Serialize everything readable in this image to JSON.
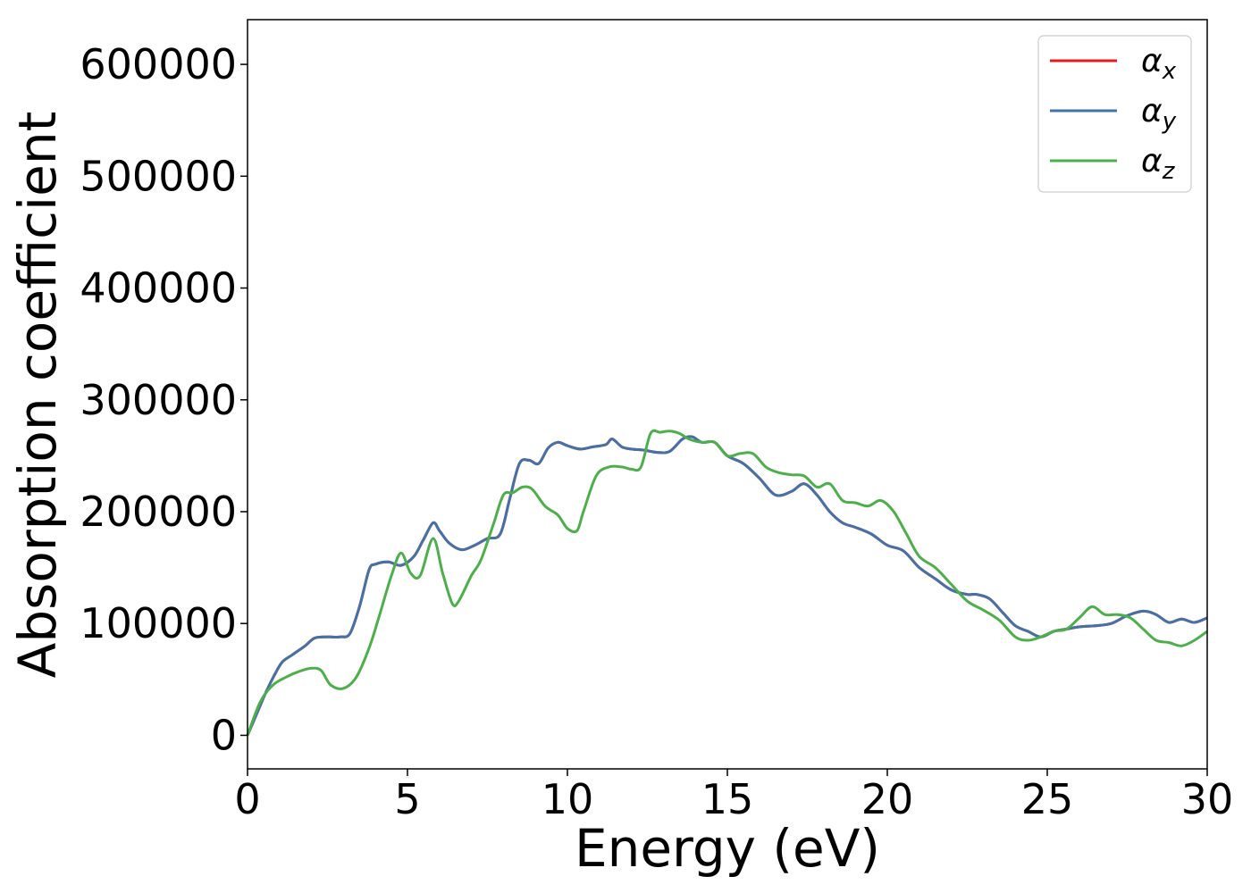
{
  "chart_data": {
    "type": "line",
    "xlabel": "Energy (eV)",
    "ylabel": "Absorption coefficient",
    "xlim": [
      0,
      30
    ],
    "ylim": [
      -30000,
      640000
    ],
    "xticks": [
      0,
      5,
      10,
      15,
      20,
      25,
      30
    ],
    "yticks": [
      0,
      100000,
      200000,
      300000,
      400000,
      500000,
      600000
    ],
    "grid": false,
    "legend_position": "top-right",
    "series": [
      {
        "name": "αx",
        "legend_base": "α",
        "legend_sub": "x",
        "color": "#e41a1c",
        "x": [
          0,
          0.3,
          0.6,
          0.9,
          1.1,
          1.4,
          1.8,
          2.1,
          2.5,
          2.9,
          3.2,
          3.5,
          3.8,
          4.0,
          4.4,
          4.8,
          5.2,
          5.5,
          5.8,
          6.0,
          6.3,
          6.7,
          7.1,
          7.5,
          7.9,
          8.2,
          8.5,
          8.8,
          9.1,
          9.4,
          9.7,
          10.0,
          10.4,
          10.8,
          11.2,
          11.4,
          11.7,
          12.0,
          12.4,
          12.8,
          13.2,
          13.6,
          13.9,
          14.2,
          14.6,
          15.0,
          15.5,
          16.0,
          16.5,
          17.0,
          17.4,
          17.8,
          18.2,
          18.6,
          19.0,
          19.5,
          20.0,
          20.5,
          21.0,
          21.5,
          22.0,
          22.5,
          22.8,
          23.2,
          23.6,
          24.0,
          24.4,
          24.8,
          25.2,
          25.6,
          26.0,
          26.5,
          27.0,
          27.5,
          28.0,
          28.4,
          28.8,
          29.2,
          29.6,
          30.0
        ],
        "values": [
          0,
          20000,
          40000,
          57000,
          66000,
          72000,
          80000,
          87000,
          88000,
          88000,
          91000,
          115000,
          148000,
          153000,
          155000,
          152000,
          160000,
          175000,
          190000,
          183000,
          172000,
          166000,
          170000,
          176000,
          180000,
          212000,
          243000,
          246000,
          243000,
          257000,
          262000,
          259000,
          256000,
          258000,
          260000,
          265000,
          258000,
          256000,
          255000,
          253000,
          254000,
          265000,
          267000,
          262000,
          262000,
          250000,
          243000,
          230000,
          215000,
          218000,
          225000,
          215000,
          200000,
          190000,
          186000,
          180000,
          170000,
          165000,
          150000,
          140000,
          130000,
          126000,
          126000,
          122000,
          110000,
          98000,
          93000,
          88000,
          93000,
          95000,
          97000,
          98000,
          100000,
          107000,
          111000,
          108000,
          101000,
          104000,
          101000,
          105000
        ]
      },
      {
        "name": "αy",
        "legend_base": "α",
        "legend_sub": "y",
        "color": "#4472a8",
        "x": [
          0,
          0.3,
          0.6,
          0.9,
          1.1,
          1.4,
          1.8,
          2.1,
          2.5,
          2.9,
          3.2,
          3.5,
          3.8,
          4.0,
          4.4,
          4.8,
          5.2,
          5.5,
          5.8,
          6.0,
          6.3,
          6.7,
          7.1,
          7.5,
          7.9,
          8.2,
          8.5,
          8.8,
          9.1,
          9.4,
          9.7,
          10.0,
          10.4,
          10.8,
          11.2,
          11.4,
          11.7,
          12.0,
          12.4,
          12.8,
          13.2,
          13.6,
          13.9,
          14.2,
          14.6,
          15.0,
          15.5,
          16.0,
          16.5,
          17.0,
          17.4,
          17.8,
          18.2,
          18.6,
          19.0,
          19.5,
          20.0,
          20.5,
          21.0,
          21.5,
          22.0,
          22.5,
          22.8,
          23.2,
          23.6,
          24.0,
          24.4,
          24.8,
          25.2,
          25.6,
          26.0,
          26.5,
          27.0,
          27.5,
          28.0,
          28.4,
          28.8,
          29.2,
          29.6,
          30.0
        ],
        "values": [
          0,
          20000,
          40000,
          57000,
          66000,
          72000,
          80000,
          87000,
          88000,
          88000,
          91000,
          115000,
          148000,
          153000,
          155000,
          152000,
          160000,
          175000,
          190000,
          183000,
          172000,
          166000,
          170000,
          176000,
          180000,
          212000,
          243000,
          246000,
          243000,
          257000,
          262000,
          259000,
          256000,
          258000,
          260000,
          265000,
          258000,
          256000,
          255000,
          253000,
          254000,
          265000,
          267000,
          262000,
          262000,
          250000,
          243000,
          230000,
          215000,
          218000,
          225000,
          215000,
          200000,
          190000,
          186000,
          180000,
          170000,
          165000,
          150000,
          140000,
          130000,
          126000,
          126000,
          122000,
          110000,
          98000,
          93000,
          88000,
          93000,
          95000,
          97000,
          98000,
          100000,
          107000,
          111000,
          108000,
          101000,
          104000,
          101000,
          105000
        ]
      },
      {
        "name": "αz",
        "legend_base": "α",
        "legend_sub": "z",
        "color": "#4daf4a",
        "x": [
          0,
          0.4,
          0.8,
          1.2,
          1.6,
          2.0,
          2.3,
          2.6,
          3.0,
          3.4,
          3.8,
          4.1,
          4.5,
          4.8,
          5.1,
          5.4,
          5.8,
          6.1,
          6.4,
          6.6,
          7.0,
          7.3,
          7.7,
          8.0,
          8.3,
          8.6,
          8.9,
          9.3,
          9.7,
          10.0,
          10.3,
          10.5,
          10.9,
          11.3,
          11.7,
          12.0,
          12.3,
          12.6,
          12.9,
          13.2,
          13.5,
          13.8,
          14.2,
          14.6,
          15.0,
          15.4,
          15.8,
          16.2,
          16.6,
          17.0,
          17.4,
          17.8,
          18.2,
          18.6,
          19.0,
          19.4,
          19.8,
          20.2,
          20.6,
          21.0,
          21.5,
          22.0,
          22.5,
          23.0,
          23.5,
          24.0,
          24.4,
          24.8,
          25.2,
          25.6,
          26.0,
          26.4,
          26.8,
          27.2,
          27.6,
          28.0,
          28.4,
          28.8,
          29.2,
          29.6,
          30.0
        ],
        "values": [
          0,
          30000,
          45000,
          52000,
          57000,
          60000,
          58000,
          45000,
          42000,
          52000,
          78000,
          105000,
          143000,
          163000,
          145000,
          143000,
          176000,
          145000,
          118000,
          120000,
          143000,
          157000,
          190000,
          215000,
          217000,
          222000,
          220000,
          205000,
          197000,
          185000,
          183000,
          200000,
          232000,
          240000,
          240000,
          238000,
          240000,
          270000,
          271000,
          272000,
          270000,
          265000,
          262000,
          262000,
          250000,
          252000,
          252000,
          240000,
          235000,
          233000,
          232000,
          222000,
          225000,
          210000,
          208000,
          205000,
          210000,
          200000,
          180000,
          160000,
          150000,
          135000,
          120000,
          112000,
          103000,
          88000,
          85000,
          88000,
          93000,
          95000,
          105000,
          115000,
          108000,
          108000,
          105000,
          95000,
          85000,
          83000,
          80000,
          85000,
          93000
        ]
      }
    ]
  }
}
